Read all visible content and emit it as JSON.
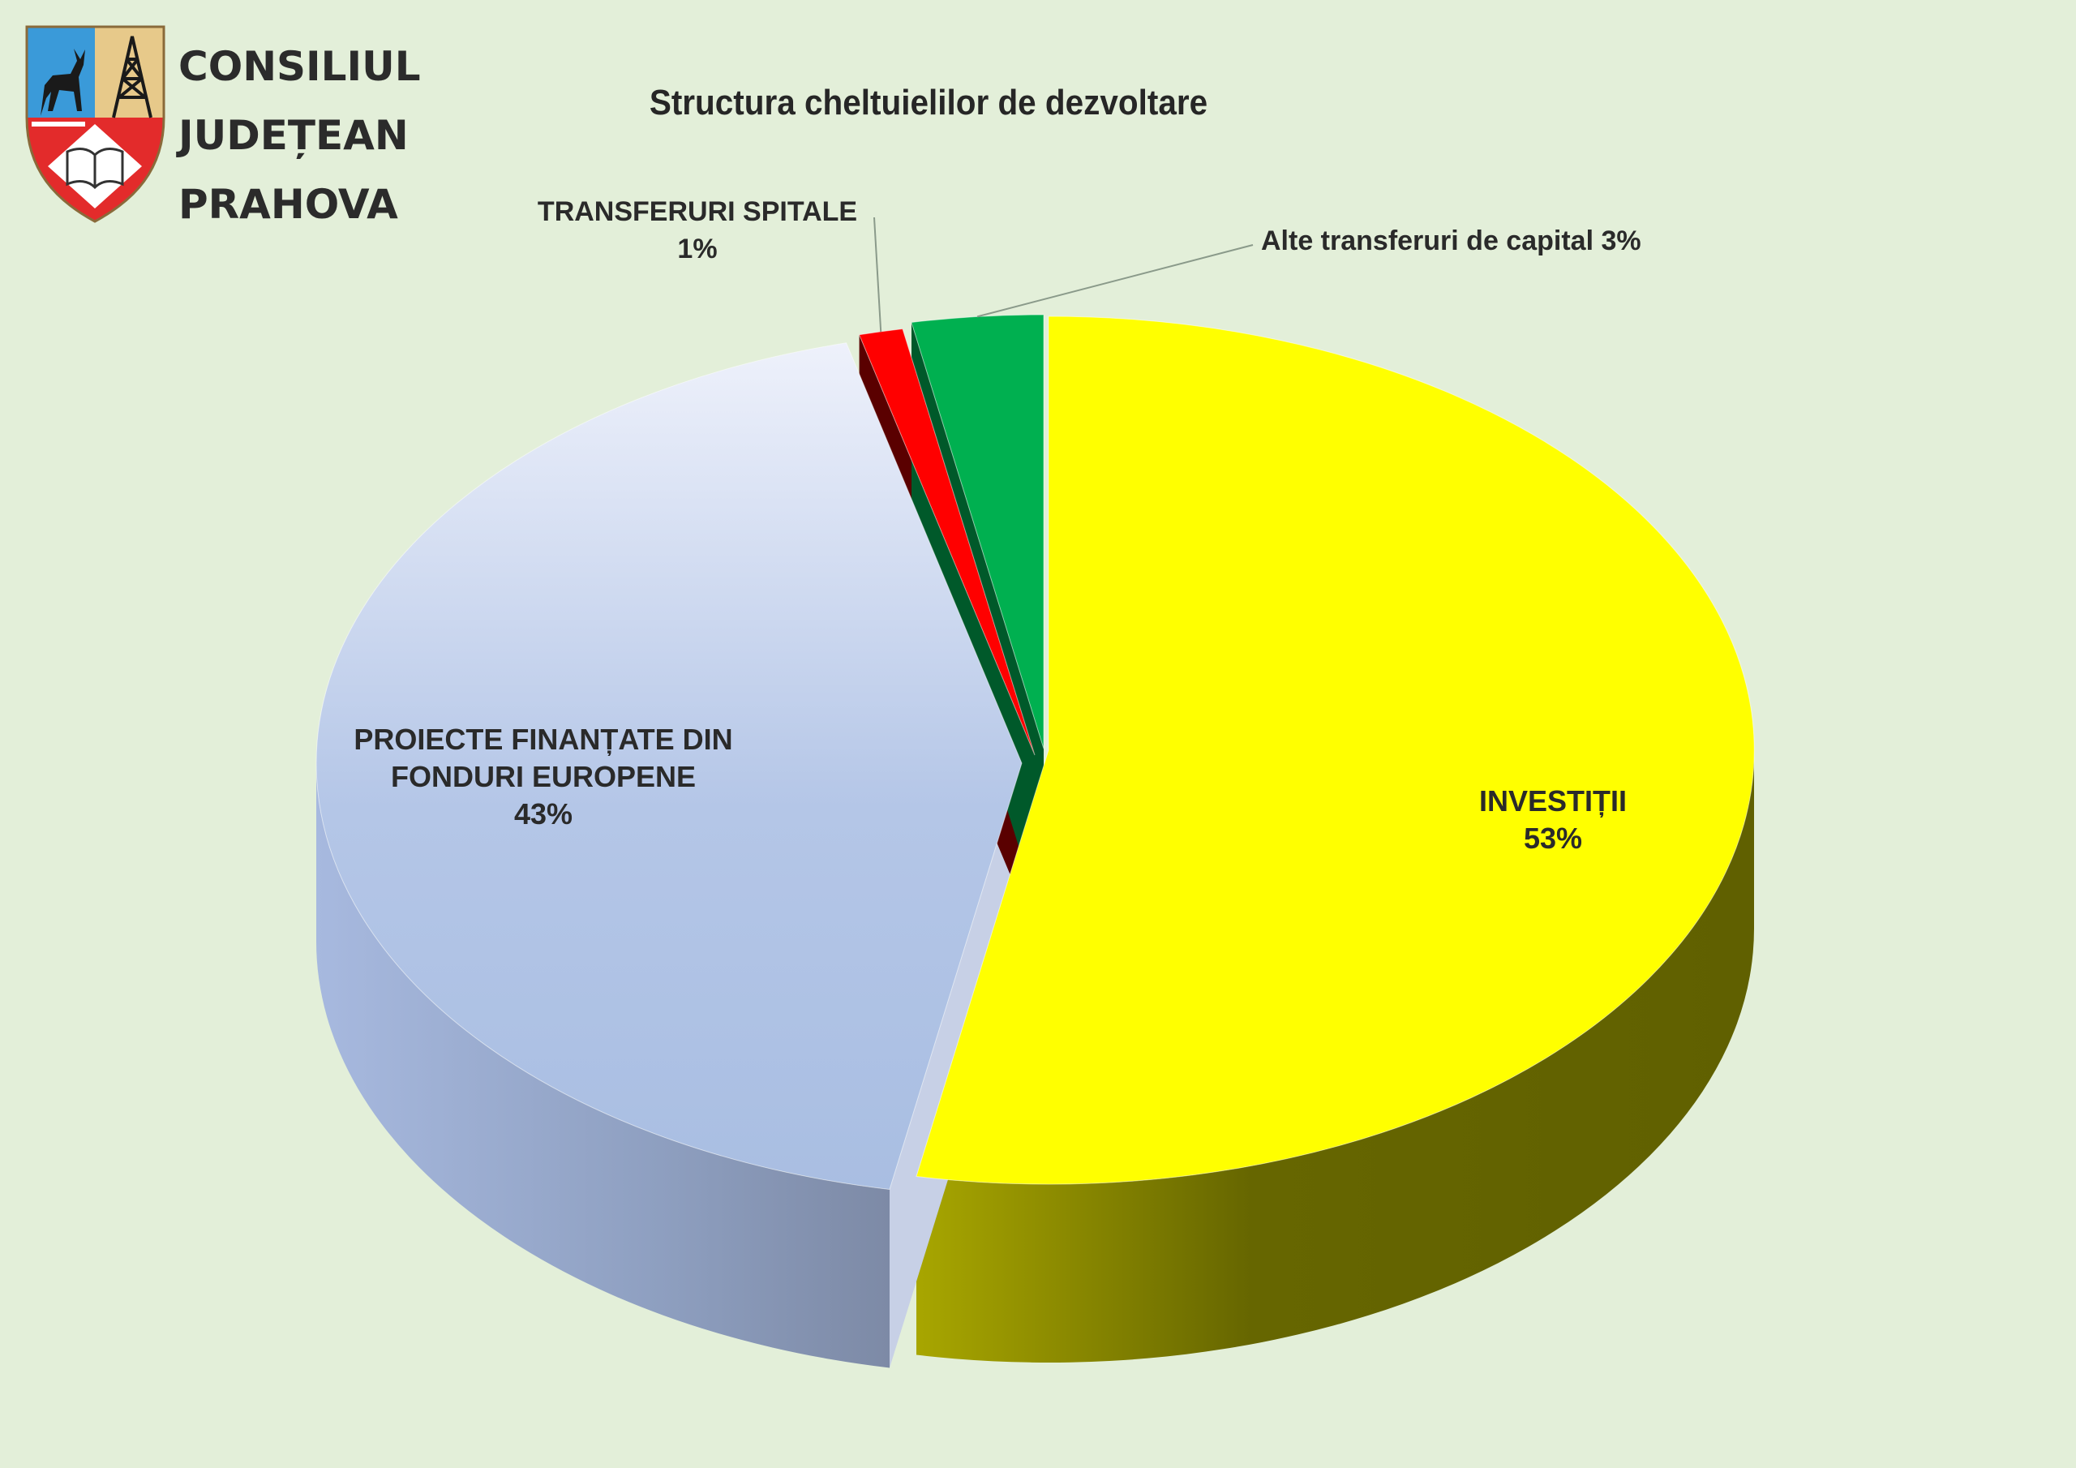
{
  "header": {
    "org_lines": [
      "CONSILIUL",
      "JUDEȚEAN",
      "PRAHOVA"
    ]
  },
  "icons": {
    "logo": "county-coat-of-arms-icon"
  },
  "chart_data": {
    "type": "pie",
    "title": "Structura cheltuielilor de dezvoltare",
    "xlabel": "",
    "ylabel": "",
    "legend": "none",
    "slices": [
      {
        "label": "INVESTIȚII",
        "percent_label": "53%",
        "value": 53,
        "color": "#ffff00"
      },
      {
        "label": "PROIECTE FINANȚATE DIN FONDURI EUROPENE",
        "label_lines": [
          "PROIECTE FINANȚATE DIN",
          "FONDURI EUROPENE"
        ],
        "percent_label": "43%",
        "value": 43,
        "color": "#b8c8e6"
      },
      {
        "label": "TRANSFERURI SPITALE",
        "percent_label": "1%",
        "value": 1,
        "color": "#ff0000"
      },
      {
        "label": "Alte transferuri de capital",
        "full_label": "Alte transferuri de capital 3%",
        "percent_label": "3%",
        "value": 3,
        "color": "#00b050"
      }
    ]
  }
}
